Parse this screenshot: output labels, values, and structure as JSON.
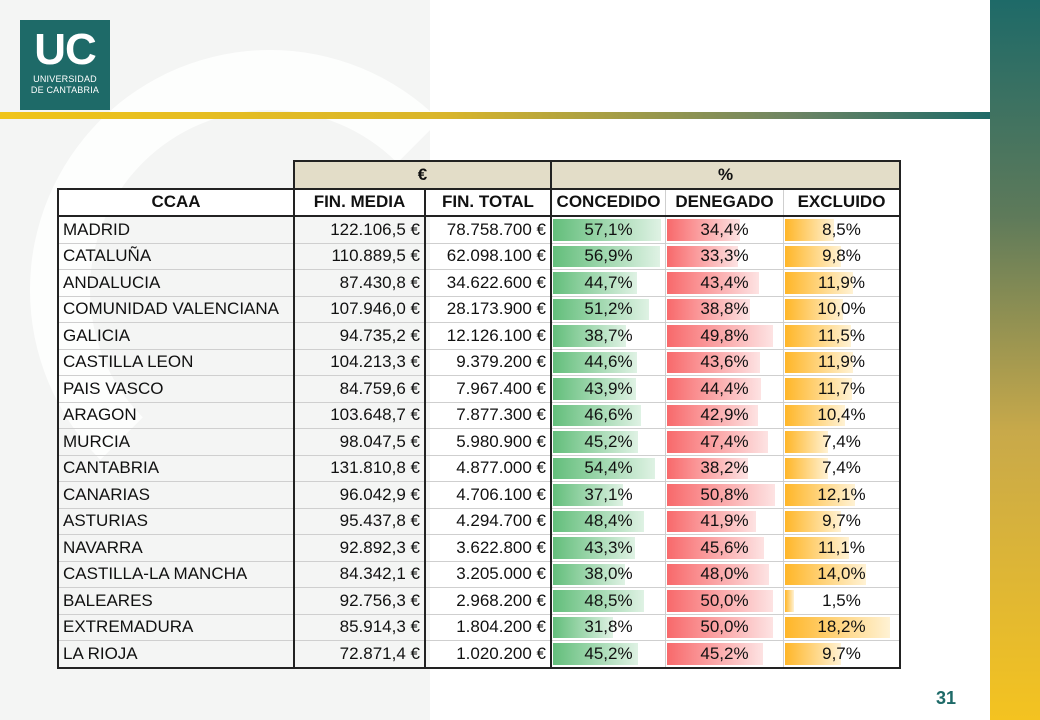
{
  "logo": {
    "mark": "UC",
    "line1": "UNIVERSIDAD",
    "line2": "DE CANTABRIA"
  },
  "table": {
    "group_headers": {
      "euro": "€",
      "percent": "%"
    },
    "columns": {
      "ccaa": "CCAA",
      "fin_media": "FIN. MEDIA",
      "fin_total": "FIN. TOTAL",
      "concedido": "CONCEDIDO",
      "denegado": "DENEGADO",
      "excluido": "EXCLUIDO"
    },
    "rows": [
      {
        "ccaa": "MADRID",
        "fin_media": "122.106,5 €",
        "fin_total": "78.758.700 €",
        "concedido": "57,1%",
        "denegado": "34,4%",
        "excluido": "8,5%"
      },
      {
        "ccaa": "CATALUÑA",
        "fin_media": "110.889,5 €",
        "fin_total": "62.098.100 €",
        "concedido": "56,9%",
        "denegado": "33,3%",
        "excluido": "9,8%"
      },
      {
        "ccaa": "ANDALUCIA",
        "fin_media": "87.430,8 €",
        "fin_total": "34.622.600 €",
        "concedido": "44,7%",
        "denegado": "43,4%",
        "excluido": "11,9%"
      },
      {
        "ccaa": "COMUNIDAD VALENCIANA",
        "fin_media": "107.946,0 €",
        "fin_total": "28.173.900 €",
        "concedido": "51,2%",
        "denegado": "38,8%",
        "excluido": "10,0%"
      },
      {
        "ccaa": "GALICIA",
        "fin_media": "94.735,2 €",
        "fin_total": "12.126.100 €",
        "concedido": "38,7%",
        "denegado": "49,8%",
        "excluido": "11,5%"
      },
      {
        "ccaa": "CASTILLA LEON",
        "fin_media": "104.213,3 €",
        "fin_total": "9.379.200 €",
        "concedido": "44,6%",
        "denegado": "43,6%",
        "excluido": "11,9%"
      },
      {
        "ccaa": "PAIS VASCO",
        "fin_media": "84.759,6 €",
        "fin_total": "7.967.400 €",
        "concedido": "43,9%",
        "denegado": "44,4%",
        "excluido": "11,7%"
      },
      {
        "ccaa": "ARAGON",
        "fin_media": "103.648,7 €",
        "fin_total": "7.877.300 €",
        "concedido": "46,6%",
        "denegado": "42,9%",
        "excluido": "10,4%"
      },
      {
        "ccaa": "MURCIA",
        "fin_media": "98.047,5 €",
        "fin_total": "5.980.900 €",
        "concedido": "45,2%",
        "denegado": "47,4%",
        "excluido": "7,4%"
      },
      {
        "ccaa": "CANTABRIA",
        "fin_media": "131.810,8 €",
        "fin_total": "4.877.000 €",
        "concedido": "54,4%",
        "denegado": "38,2%",
        "excluido": "7,4%"
      },
      {
        "ccaa": "CANARIAS",
        "fin_media": "96.042,9 €",
        "fin_total": "4.706.100 €",
        "concedido": "37,1%",
        "denegado": "50,8%",
        "excluido": "12,1%"
      },
      {
        "ccaa": "ASTURIAS",
        "fin_media": "95.437,8 €",
        "fin_total": "4.294.700 €",
        "concedido": "48,4%",
        "denegado": "41,9%",
        "excluido": "9,7%"
      },
      {
        "ccaa": "NAVARRA",
        "fin_media": "92.892,3 €",
        "fin_total": "3.622.800 €",
        "concedido": "43,3%",
        "denegado": "45,6%",
        "excluido": "11,1%"
      },
      {
        "ccaa": "CASTILLA-LA MANCHA",
        "fin_media": "84.342,1 €",
        "fin_total": "3.205.000 €",
        "concedido": "38,0%",
        "denegado": "48,0%",
        "excluido": "14,0%"
      },
      {
        "ccaa": "BALEARES",
        "fin_media": "92.756,3 €",
        "fin_total": "2.968.200 €",
        "concedido": "48,5%",
        "denegado": "50,0%",
        "excluido": "1,5%"
      },
      {
        "ccaa": "EXTREMADURA",
        "fin_media": "85.914,3 €",
        "fin_total": "1.804.200 €",
        "concedido": "31,8%",
        "denegado": "50,0%",
        "excluido": "18,2%"
      },
      {
        "ccaa": "LA RIOJA",
        "fin_media": "72.871,4 €",
        "fin_total": "1.020.200 €",
        "concedido": "45,2%",
        "denegado": "45,2%",
        "excluido": "9,7%"
      }
    ]
  },
  "page_number": "31",
  "colors": {
    "brand_teal": "#1e6a68",
    "brand_yellow": "#f4c320",
    "bar_green": "#63be7b",
    "bar_red": "#f8696b",
    "bar_orange": "#ffb628"
  }
}
